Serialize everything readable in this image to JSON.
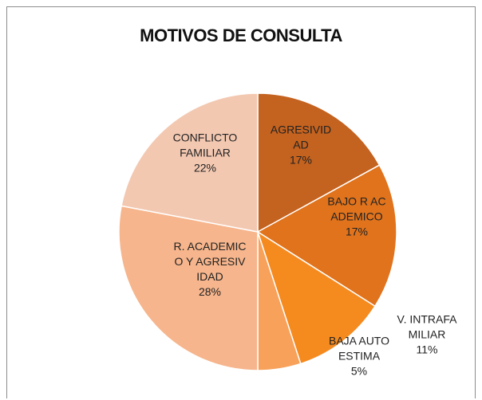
{
  "chart_data": {
    "type": "pie",
    "title": "MOTIVOS DE CONSULTA",
    "categories": [
      "AGRESIVIDAD",
      "BAJO R ACADEMICO",
      "V. INTRAFAMILIAR",
      "BAJA AUTOESTIMA",
      "R. ACADEMICO Y AGRESIVIDAD",
      "CONFLICTO FAMILIAR"
    ],
    "values": [
      17,
      17,
      11,
      5,
      28,
      22
    ],
    "value_labels": [
      "17%",
      "17%",
      "11%",
      "5%",
      "28%",
      "22%"
    ],
    "colors": [
      "#c4621f",
      "#e0731c",
      "#f58a1f",
      "#f7a15a",
      "#f6b58c",
      "#f3c8b1"
    ]
  }
}
